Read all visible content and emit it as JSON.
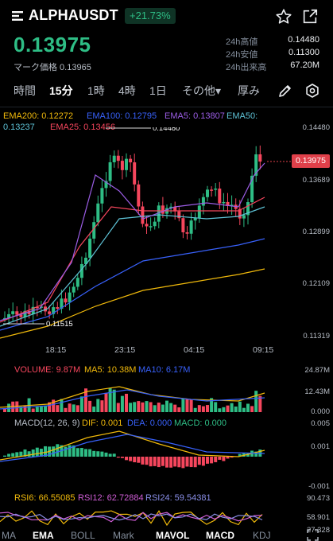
{
  "header": {
    "pair": "ALPHAUSDT",
    "change": "+21.73%",
    "last_price": "0.13975",
    "mark_price_text": "マーク価格 0.13965",
    "stats": [
      {
        "label": "24h高値",
        "value": "0.14480"
      },
      {
        "label": "24h安値",
        "value": "0.11300"
      },
      {
        "label": "24h出来高",
        "value": "67.20M"
      }
    ]
  },
  "timeframe_tabs": [
    {
      "label": "時間",
      "active": false
    },
    {
      "label": "15分",
      "active": true
    },
    {
      "label": "1時",
      "active": false
    },
    {
      "label": "4時",
      "active": false
    },
    {
      "label": "1日",
      "active": false
    },
    {
      "label": "その他▾",
      "active": false
    },
    {
      "label": "厚み",
      "active": false
    }
  ],
  "main_chart": {
    "ema_legend": [
      {
        "text": "EMA200: 0.12272",
        "color": "#f0b90b"
      },
      {
        "text": "EMA100: 0.12795",
        "color": "#3861fb"
      },
      {
        "text": "EMA5: 0.13807",
        "color": "#9b5de5"
      },
      {
        "text": "EMA50:",
        "color": "#5ec2d6"
      },
      {
        "text": "0.13237",
        "color": "#5ec2d6"
      },
      {
        "text": "EMA25: 0.13456",
        "color": "#f6465d"
      }
    ],
    "y_labels": [
      "0.14480",
      "0.13689",
      "0.12899",
      "0.12109",
      "0.11319"
    ],
    "x_labels": [
      "18:15",
      "23:15",
      "04:15",
      "09:15"
    ],
    "high_mark": "0.14480",
    "low_mark": "0.11515",
    "current_price": "0.13975",
    "colors": {
      "up": "#2ebd85",
      "down": "#f6465d"
    }
  },
  "volume_panel": {
    "legend": [
      {
        "text": "VOLUME: 9.87M",
        "color": "#f6465d"
      },
      {
        "text": "MA5: 10.38M",
        "color": "#f0b90b"
      },
      {
        "text": "MA10: 6.17M",
        "color": "#3861fb"
      }
    ],
    "y_labels": [
      "24.87M",
      "12.43M",
      "0.000"
    ]
  },
  "macd_panel": {
    "legend": [
      {
        "text": "MACD(12, 26, 9)",
        "color": "#b7bdc6"
      },
      {
        "text": "DIF: 0.001",
        "color": "#f0b90b"
      },
      {
        "text": "DEA: 0.000",
        "color": "#3861fb"
      },
      {
        "text": "MACD: 0.000",
        "color": "#2ebd85"
      }
    ],
    "y_labels": [
      "0.005",
      "0.001",
      "-0.001"
    ]
  },
  "rsi_panel": {
    "legend": [
      {
        "text": "RSI6: 66.55085",
        "color": "#f0b90b"
      },
      {
        "text": "RSI12: 62.72884",
        "color": "#cf5dd6"
      },
      {
        "text": "RSI24: 59.54381",
        "color": "#8a8fe8"
      }
    ],
    "y_labels": [
      "90.473",
      "58.901",
      "27.328"
    ]
  },
  "bottom_tabs": [
    {
      "label": "MA",
      "on": false
    },
    {
      "label": "EMA",
      "on": true
    },
    {
      "label": "BOLL",
      "on": false
    },
    {
      "label": "Mark",
      "on": false
    },
    {
      "label": "MAVOL",
      "on": true
    },
    {
      "label": "MACD",
      "on": true
    },
    {
      "label": "KDJ",
      "on": false
    }
  ]
}
